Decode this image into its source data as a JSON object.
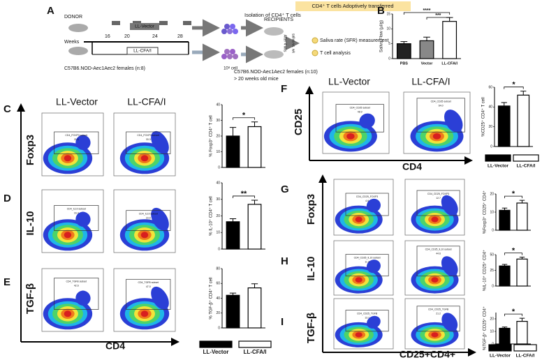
{
  "panel_labels": [
    "A",
    "B",
    "C",
    "D",
    "E",
    "F",
    "G",
    "H",
    "I"
  ],
  "schematic": {
    "donor": "DONOR",
    "vector": "LL-Vector",
    "weeks": "Weeks",
    "week_ticks": [
      "16",
      "20",
      "24",
      "28"
    ],
    "cfa": "LL-CFA/I",
    "donor_mice": "C57B6.NOD-Aec1Aec2 females (n:8)",
    "isolation": "Isolation of CD4⁺ T cells",
    "cells": "10⁸ cell",
    "transfer": "CD4⁺ T cells Adoptively transferred",
    "recipients": "RECIPIENTS",
    "after": "After 4 wks",
    "saliva_time": "saliva vs. wk",
    "readout1": "Saliva rate (SFR) measurement",
    "readout2": "T cell analysis",
    "recipient_mice": "C57B6.NOD-Aec1Aec2 females (n:10)",
    "recipient_age": "> 20 weeks old mice"
  },
  "column_headers": {
    "left": [
      "LL-Vector",
      "LL-CFA/I"
    ],
    "right": [
      "LL-Vector",
      "LL-CFA/I"
    ]
  },
  "axis_labels": {
    "left_rows": [
      "Foxp3",
      "IL-10",
      "TGF-β"
    ],
    "left_x": "CD4",
    "right_top_y": "CD25",
    "right_top_x": "CD4",
    "right_rows": [
      "Foxp3",
      "IL-10",
      "TGF-β"
    ],
    "right_x": "CD25+CD4+"
  },
  "flow_gates": [
    [
      {
        "name": "CD4_FOXP3 subset",
        "value": "21.6"
      },
      {
        "name": "CD4_FOXP3 subset",
        "value": "33.3"
      }
    ],
    [
      {
        "name": "CD4_IL10 subset",
        "value": "16.3"
      },
      {
        "name": "CD4_IL10 subset",
        "value": "23.6"
      }
    ],
    [
      {
        "name": "CD4_TGFB subset",
        "value": "42.6"
      },
      {
        "name": "CD4_TGFB subset",
        "value": "47.0"
      }
    ],
    [
      {
        "name": "CD4_CD25 subset",
        "value": "48.9"
      },
      {
        "name": "CD4_CD25 subset",
        "value": "64.0"
      }
    ],
    [
      {
        "name": "CD4_CD25_FOXP3",
        "value": "4.6"
      },
      {
        "name": "CD4_CD25_FOXP3",
        "value": "12.7"
      }
    ],
    [
      {
        "name": "CD4_CD25_IL10 subset",
        "value": "11.3"
      },
      {
        "name": "CD4_CD25_IL10 subset",
        "value": "44.6"
      }
    ],
    [
      {
        "name": "CD4_CD25_TGFB",
        "value": "13.7"
      },
      {
        "name": "CD4_CD25_TGFB",
        "value": "21.2"
      }
    ]
  ],
  "legends": [
    [
      "LL-Vector",
      "LL-CFA/I"
    ],
    [
      "LL-Vector",
      "LL-CFA/I"
    ],
    [
      "LL-Vector",
      "LL-CFA/I"
    ]
  ],
  "chart_data": [
    {
      "type": "bar",
      "y_label": "Saliva Flow (µl/g)",
      "categories": [
        "PBS",
        "Vector",
        "LL-CFA/I"
      ],
      "values": [
        5,
        6,
        12.5
      ],
      "errors": [
        0.7,
        1.2,
        1.3
      ],
      "colors": [
        "#222222",
        "#888888",
        "#ffffff"
      ],
      "ylim": [
        0,
        15
      ],
      "yticks": [
        0,
        5,
        10,
        15
      ],
      "significance": [
        "****",
        "***"
      ]
    },
    {
      "type": "bar",
      "y_label": "% Foxp3⁺ CD4⁺ T cell",
      "categories": [
        "LL-Vector",
        "LL-CFA/I"
      ],
      "values": [
        20,
        26
      ],
      "errors": [
        5.5,
        3
      ],
      "colors": [
        "#000000",
        "#ffffff"
      ],
      "ylim": [
        0,
        40
      ],
      "yticks": [
        0,
        10,
        20,
        30,
        40
      ],
      "significance": [
        "*"
      ]
    },
    {
      "type": "bar",
      "y_label": "% IL-10⁺ CD4⁺ T cell",
      "categories": [
        "LL-Vector",
        "LL-CFA/I"
      ],
      "values": [
        16.5,
        27
      ],
      "errors": [
        1.8,
        2.5
      ],
      "colors": [
        "#000000",
        "#ffffff"
      ],
      "ylim": [
        0,
        40
      ],
      "yticks": [
        0,
        10,
        20,
        30,
        40
      ],
      "significance": [
        "**"
      ]
    },
    {
      "type": "bar",
      "y_label": "% TGF-β⁺ CD4⁺ T cell",
      "categories": [
        "LL-Vector",
        "LL-CFA/I"
      ],
      "values": [
        44,
        54
      ],
      "errors": [
        3,
        5.5
      ],
      "colors": [
        "#000000",
        "#ffffff"
      ],
      "ylim": [
        0,
        80
      ],
      "yticks": [
        0,
        20,
        40,
        60,
        80
      ],
      "significance": []
    },
    {
      "type": "bar",
      "y_label": "%CD25⁺ CD4⁺ T cell",
      "categories": [
        "LL-Vector",
        "LL-CFA/I"
      ],
      "values": [
        41,
        52
      ],
      "errors": [
        3.5,
        4
      ],
      "colors": [
        "#000000",
        "#ffffff"
      ],
      "ylim": [
        0,
        60
      ],
      "yticks": [
        0,
        20,
        40,
        60
      ],
      "significance": [
        "*"
      ]
    },
    {
      "type": "bar",
      "y_label": "%Foxp3⁺ CD25⁺ CD4⁺",
      "categories": [
        "LL-Vector",
        "LL-CFA/I"
      ],
      "values": [
        11,
        15
      ],
      "errors": [
        1.2,
        1.5
      ],
      "colors": [
        "#000000",
        "#ffffff"
      ],
      "ylim": [
        0,
        20
      ],
      "yticks": [
        0,
        10,
        20
      ],
      "significance": [
        "*"
      ]
    },
    {
      "type": "bar",
      "y_label": "%IL-10⁺ CD25⁺ CD4⁺",
      "categories": [
        "LL-Vector",
        "LL-CFA/I"
      ],
      "values": [
        32,
        43
      ],
      "errors": [
        2.5,
        3
      ],
      "colors": [
        "#000000",
        "#ffffff"
      ],
      "ylim": [
        0,
        50
      ],
      "yticks": [
        0,
        25,
        50
      ],
      "significance": [
        "*"
      ]
    },
    {
      "type": "bar",
      "y_label": "%TGF-β⁺ CD25⁺ CD4⁺",
      "categories": [
        "LL-Vector",
        "LL-CFA/I"
      ],
      "values": [
        12.5,
        18
      ],
      "errors": [
        1,
        2.5
      ],
      "colors": [
        "#000000",
        "#ffffff"
      ],
      "ylim": [
        0,
        25
      ],
      "yticks": [
        0,
        10,
        20
      ],
      "significance": [
        "*"
      ]
    }
  ]
}
